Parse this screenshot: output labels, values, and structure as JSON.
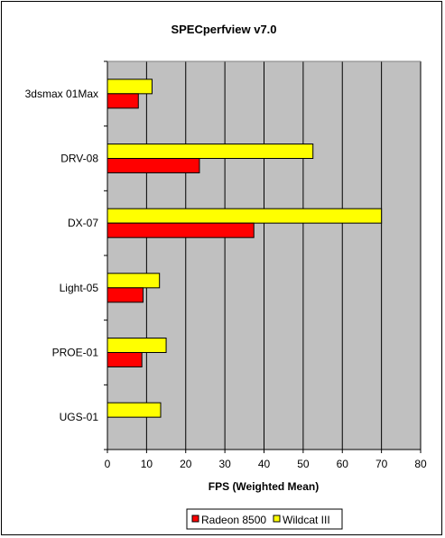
{
  "chart_data": {
    "type": "bar",
    "orientation": "horizontal",
    "title": "SPECperfview v7.0",
    "xlabel": "FPS (Weighted Mean)",
    "ylabel": "",
    "xlim": [
      0,
      80
    ],
    "xticks": [
      "0",
      "10",
      "20",
      "30",
      "40",
      "50",
      "60",
      "70",
      "80"
    ],
    "categories": [
      "3dsmax 01Max",
      "DRV-08",
      "DX-07",
      "Light-05",
      "PROE-01",
      "UGS-01"
    ],
    "series": [
      {
        "name": "Radeon 8500",
        "color": "#ff0000",
        "values": [
          7.9,
          23.5,
          37.4,
          9.1,
          8.8,
          null
        ]
      },
      {
        "name": "Wildcat III",
        "color": "#ffff00",
        "values": [
          11.4,
          52.5,
          70.0,
          13.3,
          15.0,
          13.6
        ]
      }
    ],
    "plot_background": "#c0c0c0",
    "grid": true,
    "legend": {
      "position": "bottom",
      "labels": [
        "Radeon 8500",
        "Wildcat III"
      ]
    }
  }
}
